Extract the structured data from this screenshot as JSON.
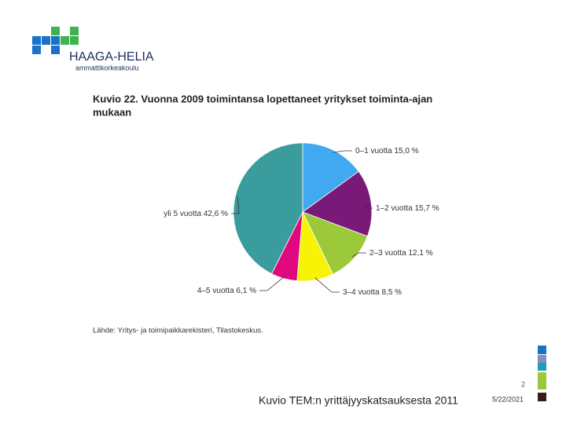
{
  "logo": {
    "name": "HAAGA-HELIA",
    "subtitle": "ammattikorkeakoulu"
  },
  "chart_data": {
    "type": "pie",
    "title": "Kuvio 22. Vuonna 2009 toimintansa lopettaneet yritykset toiminta-ajan",
    "title_line2": "mukaan",
    "categories": [
      "0–1 vuotta",
      "1–2 vuotta",
      "2–3 vuotta",
      "3–4 vuotta",
      "4–5 vuotta",
      "yli 5 vuotta"
    ],
    "values": [
      15.0,
      15.7,
      12.1,
      8.5,
      6.1,
      42.6
    ],
    "value_labels": [
      "15,0 %",
      "15,7 %",
      "12,1 %",
      "8,5 %",
      "6,1 %",
      "42,6 %"
    ],
    "colors": [
      "#41a9ef",
      "#7a1a78",
      "#9bc93a",
      "#f7f306",
      "#e0087f",
      "#3a9c9c"
    ],
    "source": "Lähde: Yritys- ja toimipaikkarekisteri, Tilastokeskus."
  },
  "footer": {
    "caption": "Kuvio TEM:n yrittäjyyskatsauksesta 2011",
    "page": "2",
    "date": "5/22/2021"
  }
}
